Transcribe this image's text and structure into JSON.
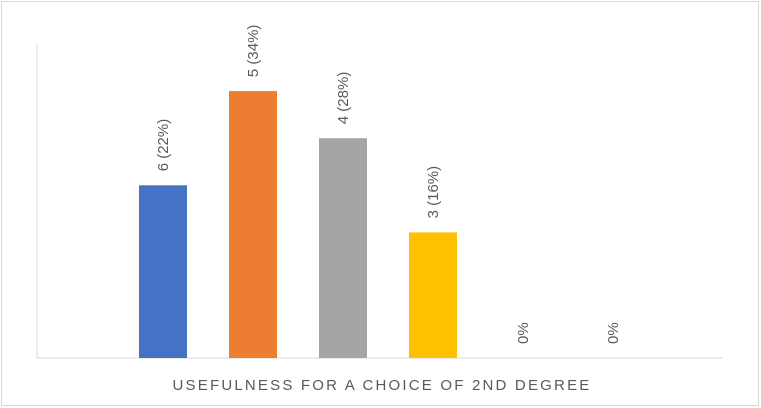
{
  "chart_data": {
    "type": "bar",
    "title": "",
    "xlabel": "USEFULNESS FOR A CHOICE OF 2ND DEGREE",
    "ylabel": "",
    "categories": [
      "",
      "",
      "",
      "",
      "",
      ""
    ],
    "values": [
      22,
      34,
      28,
      16,
      0,
      0
    ],
    "data_labels": [
      "6 (22%)",
      "5 (34%)",
      "4 (28%)",
      "3 (16%)",
      "0%",
      "0%"
    ],
    "colors": [
      "#4472C4",
      "#ED7D31",
      "#A5A5A5",
      "#FFC000",
      "#5B9BD5",
      "#70AD47"
    ],
    "ylim": [
      0,
      40
    ],
    "grid": false,
    "legend": "none"
  }
}
